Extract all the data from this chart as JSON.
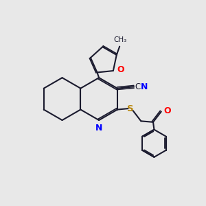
{
  "bg_color": "#e8e8e8",
  "bond_color": "#1a1a2e",
  "bond_width": 1.5,
  "dbo": 0.07,
  "figsize": [
    3.0,
    3.0
  ],
  "dpi": 100,
  "xlim": [
    0,
    10
  ],
  "ylim": [
    0,
    10
  ]
}
